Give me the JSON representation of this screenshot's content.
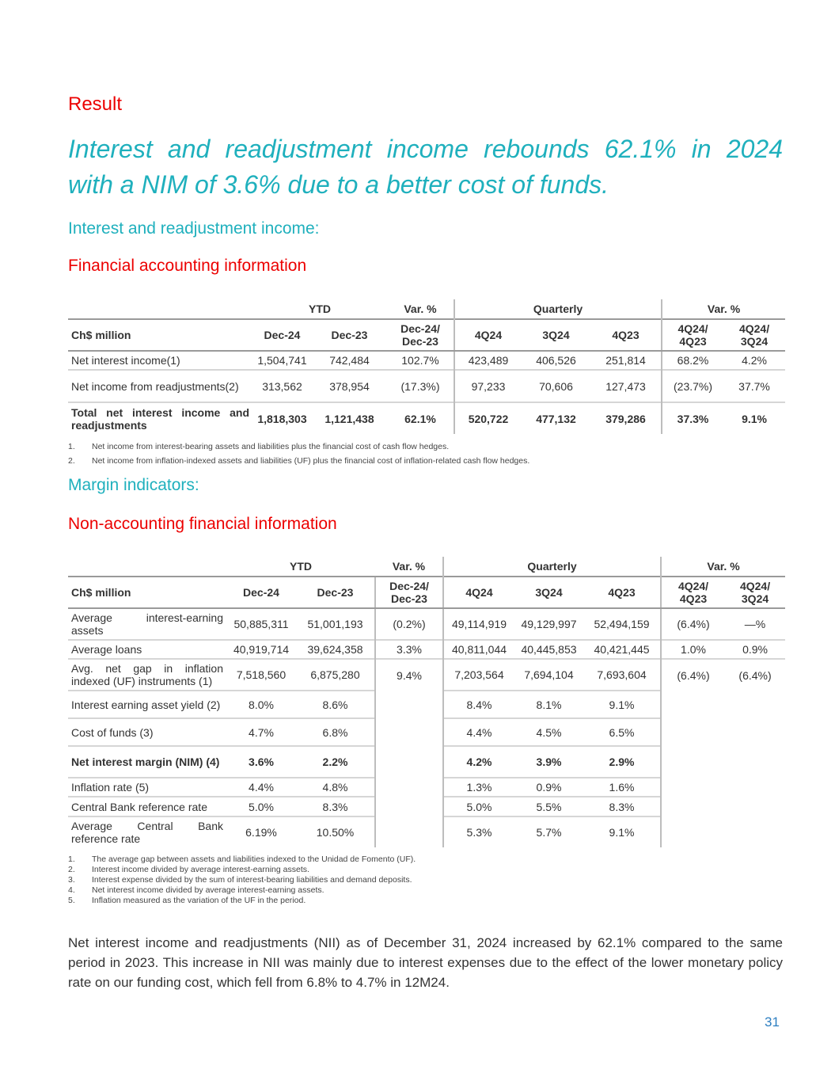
{
  "section": "Result",
  "headline": [
    "Interest and readjustment income rebounds 62.1% in 2024",
    "with a NIM of 3.6% due to a better cost of funds."
  ],
  "subtitle1": "Interest and readjustment income:",
  "subtitle1_red": "Financial accounting information",
  "table1": {
    "group_headers": [
      "YTD",
      "Var. %",
      "Quarterly",
      "Var. %"
    ],
    "columns": [
      "Ch$ million",
      "Dec-24",
      "Dec-23",
      "Dec-24/ Dec-23",
      "4Q24",
      "3Q24",
      "4Q23",
      "4Q24/ 4Q23",
      "4Q24/ 3Q24"
    ],
    "rows": [
      {
        "bold": false,
        "cells": [
          "Net interest income(1)",
          "1,504,741",
          "742,484",
          "102.7%",
          "423,489",
          "406,526",
          "251,814",
          "68.2%",
          "4.2%"
        ]
      },
      {
        "bold": false,
        "cells": [
          "Net income from readjustments(2)",
          "313,562",
          "378,954",
          "(17.3%)",
          "97,233",
          "70,606",
          "127,473",
          "(23.7%)",
          "37.7%"
        ]
      },
      {
        "bold": true,
        "cells": [
          "Total net interest income and readjustments",
          "1,818,303",
          "1,121,438",
          "62.1%",
          "520,722",
          "477,132",
          "379,286",
          "37.3%",
          "9.1%"
        ]
      }
    ],
    "footnotes": [
      "Net income from interest-bearing assets and liabilities plus the financial cost of cash flow hedges.",
      "Net income from inflation-indexed assets and liabilities (UF) plus the financial cost of inflation-related cash flow hedges."
    ]
  },
  "subtitle2": "Margin indicators:",
  "subtitle2_red": "Non-accounting financial information",
  "table2": {
    "group_headers": [
      "YTD",
      "Var. %",
      "Quarterly",
      "Var. %"
    ],
    "columns": [
      "Ch$ million",
      "Dec-24",
      "Dec-23",
      "Dec-24/ Dec-23",
      "4Q24",
      "3Q24",
      "4Q23",
      "4Q24/ 4Q23",
      "4Q24/ 3Q24"
    ],
    "rows": [
      {
        "bold": false,
        "cells": [
          "Average interest-earning assets",
          "50,885,311",
          "51,001,193",
          "(0.2%)",
          "49,114,919",
          "49,129,997",
          "52,494,159",
          "(6.4%)",
          "—%"
        ]
      },
      {
        "bold": false,
        "cells": [
          "Average loans",
          "40,919,714",
          "39,624,358",
          "3.3%",
          "40,811,044",
          "40,445,853",
          "40,421,445",
          "1.0%",
          "0.9%"
        ]
      },
      {
        "bold": false,
        "cells": [
          "Avg. net gap in inflation indexed (UF) instruments (1)",
          "7,518,560",
          "6,875,280",
          "9.4%",
          "7,203,564",
          "7,694,104",
          "7,693,604",
          "(6.4%)",
          "(6.4%)"
        ]
      },
      {
        "bold": false,
        "cells": [
          "Interest earning asset yield (2)",
          "8.0%",
          "8.6%",
          "",
          "8.4%",
          "8.1%",
          "9.1%",
          "",
          ""
        ]
      },
      {
        "bold": false,
        "cells": [
          "Cost of funds (3)",
          "4.7%",
          "6.8%",
          "",
          "4.4%",
          "4.5%",
          "6.5%",
          "",
          ""
        ]
      },
      {
        "bold": true,
        "cells": [
          "Net interest margin (NIM) (4)",
          "3.6%",
          "2.2%",
          "",
          "4.2%",
          "3.9%",
          "2.9%",
          "",
          ""
        ]
      },
      {
        "bold": false,
        "cells": [
          "Inflation rate (5)",
          "4.4%",
          "4.8%",
          "",
          "1.3%",
          "0.9%",
          "1.6%",
          "",
          ""
        ]
      },
      {
        "bold": false,
        "cells": [
          "Central Bank reference rate",
          "5.0%",
          "8.3%",
          "",
          "5.0%",
          "5.5%",
          "8.3%",
          "",
          ""
        ]
      },
      {
        "bold": false,
        "cells": [
          "Average Central Bank reference rate",
          "6.19%",
          "10.50%",
          "",
          "5.3%",
          "5.7%",
          "9.1%",
          "",
          ""
        ]
      }
    ],
    "footnotes": [
      "The average gap between assets and liabilities indexed to the Unidad de Fomento (UF).",
      "Interest income divided by average interest-earning assets.",
      "Interest expense divided by the sum of interest-bearing liabilities and demand deposits.",
      "Net interest income divided by average interest-earning assets.",
      "Inflation measured as the variation of the UF in the period."
    ]
  },
  "body_text": "Net interest income and readjustments (NII) as of December 31, 2024 increased by 62.1% compared to the same period in 2023. This increase in NII was mainly due to interest expenses due to the effect of the lower monetary policy rate on our funding cost, which fell from 6.8% to 4.7% in 12M24.",
  "page_number": "31",
  "colors": {
    "red": "#ec0000",
    "teal": "#1fb0bd",
    "page_number": "#2e7fc1"
  }
}
